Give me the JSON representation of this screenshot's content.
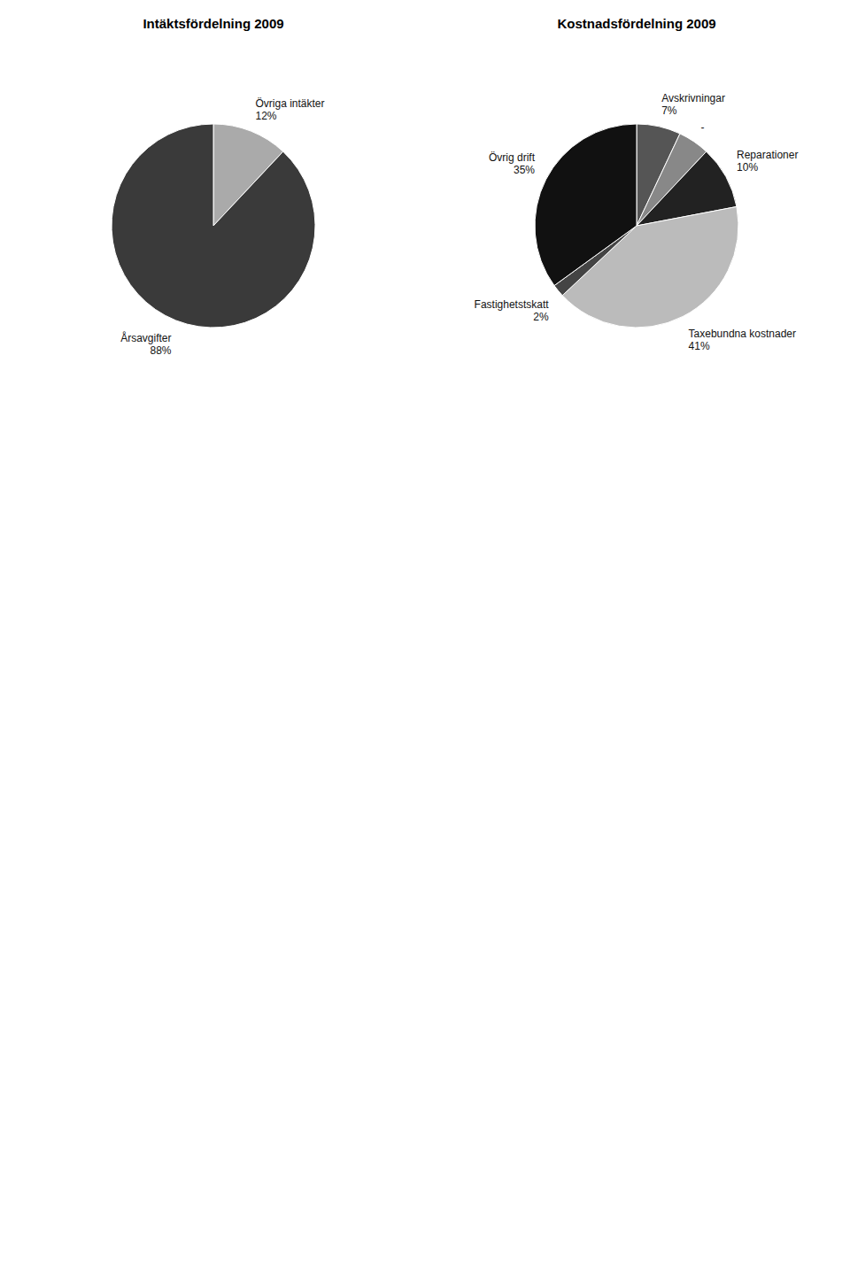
{
  "chart_data": [
    {
      "type": "pie",
      "title": "Intäktsfördelning 2009",
      "categories": [
        "Övriga intäkter",
        "Årsavgifter"
      ],
      "values": [
        12,
        88
      ],
      "value_labels": [
        "12%",
        "88%"
      ],
      "colors": [
        "#aaaaaa",
        "#3a3a3a"
      ],
      "data_labels": true
    },
    {
      "type": "pie",
      "title": "Kostnadsfördelning 2009",
      "categories": [
        "Avskrivningar",
        "-",
        "Reparationer",
        "Taxebundna kostnader",
        "Fastighetstskatt",
        "Övrig drift"
      ],
      "values": [
        7,
        5,
        10,
        41,
        2,
        35
      ],
      "value_labels": [
        "7%",
        null,
        "10%",
        "41%",
        "2%",
        "35%"
      ],
      "colors": [
        "#555555",
        "#888888",
        "#222222",
        "#bbbbbb",
        "#444444",
        "#111111"
      ],
      "data_labels": true
    }
  ]
}
